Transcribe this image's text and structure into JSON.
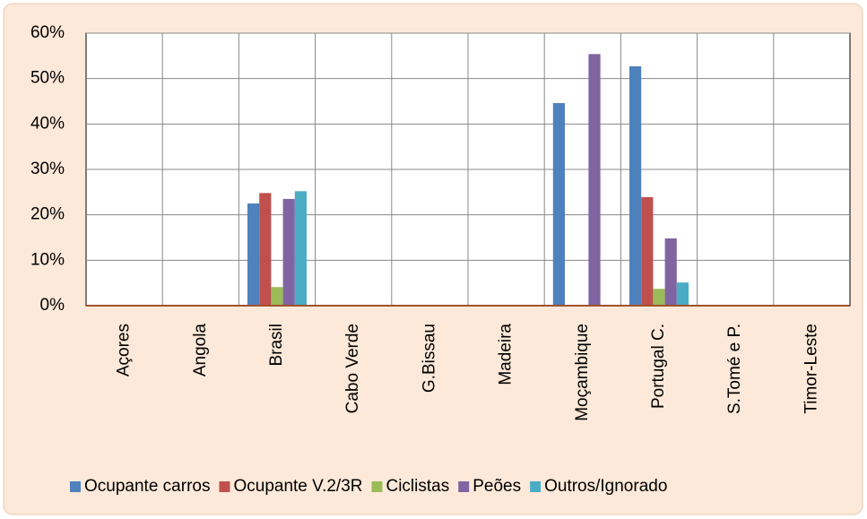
{
  "chart_data": {
    "type": "bar",
    "categories": [
      "Açores",
      "Angola",
      "Brasil",
      "Cabo Verde",
      "G.Bissau",
      "Madeira",
      "Moçambique",
      "Portugal C.",
      "S.Tomé e P.",
      "Timor-Leste"
    ],
    "series": [
      {
        "name": "Ocupante carros",
        "color": "#4f81bd",
        "values": [
          0,
          0,
          22.5,
          0,
          0,
          0,
          44.6,
          52.7,
          0,
          0
        ]
      },
      {
        "name": "Ocupante V.2/3R",
        "color": "#c0504d",
        "values": [
          0,
          0,
          24.8,
          0,
          0,
          0,
          0,
          23.9,
          0,
          0
        ]
      },
      {
        "name": "Ciclistas",
        "color": "#9bbb59",
        "values": [
          0,
          0,
          4.1,
          0,
          0,
          0,
          0,
          3.7,
          0,
          0
        ]
      },
      {
        "name": "Peões",
        "color": "#8064a2",
        "values": [
          0,
          0,
          23.5,
          0,
          0,
          0,
          55.4,
          14.8,
          0,
          0
        ]
      },
      {
        "name": "Outros/Ignorado",
        "color": "#4bacc6",
        "values": [
          0,
          0,
          25.2,
          0,
          0,
          0,
          0,
          5.1,
          0,
          0
        ]
      }
    ],
    "ylim": [
      0,
      60
    ],
    "yticks": [
      {
        "value": 0,
        "label": "0%"
      },
      {
        "value": 10,
        "label": "10%"
      },
      {
        "value": 20,
        "label": "20%"
      },
      {
        "value": 30,
        "label": "30%"
      },
      {
        "value": 40,
        "label": "40%"
      },
      {
        "value": 50,
        "label": "50%"
      },
      {
        "value": 60,
        "label": "60%"
      }
    ],
    "grid": true,
    "legend": "bottom"
  }
}
